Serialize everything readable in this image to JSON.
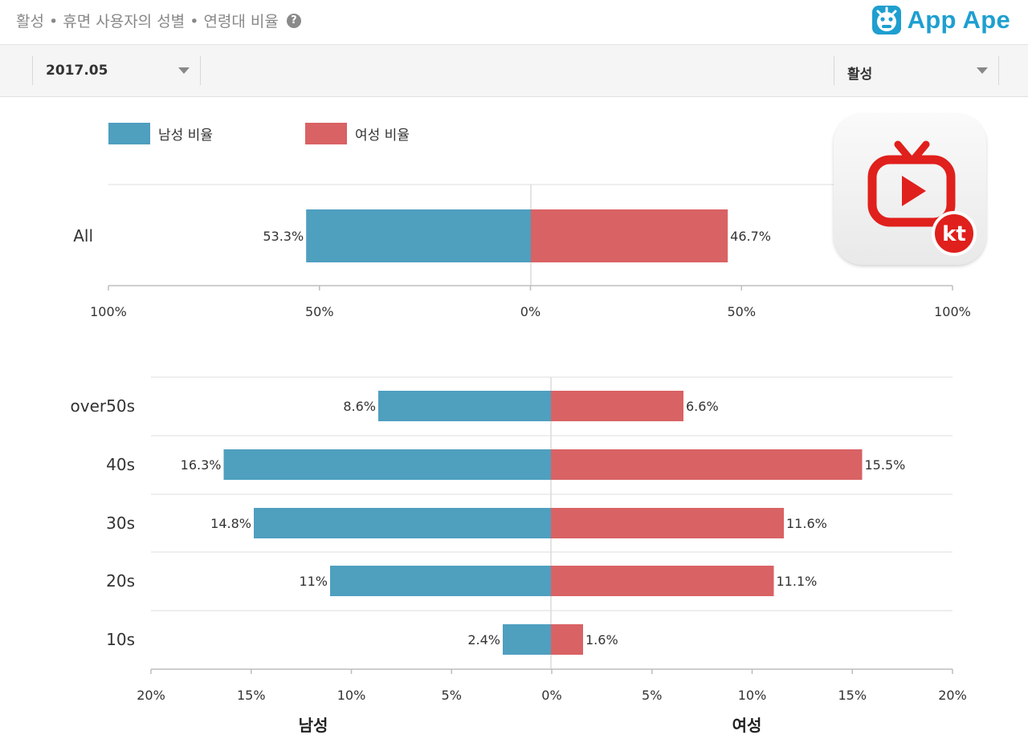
{
  "header": {
    "title": "활성 • 휴면 사용자의 성별 • 연령대 비율",
    "help_icon": "question-circle-icon",
    "brand_logo": "app-ape-logo-icon",
    "brand_name": "App Ape"
  },
  "toolbar": {
    "period_value": "2017.05",
    "status_value": "활성"
  },
  "colors": {
    "male": "#4f9fbf",
    "female": "#d96264",
    "brand": "#1e9fd0"
  },
  "app_icon": {
    "name": "kt-tv-app-icon",
    "badge": "kt"
  },
  "chart_data": [
    {
      "type": "bar",
      "orientation": "horizontal-diverging",
      "categories": [
        "All"
      ],
      "series": [
        {
          "name": "남성 비율",
          "values": [
            53.3
          ],
          "labels": [
            "53.3%"
          ]
        },
        {
          "name": "여성 비율",
          "values": [
            46.7
          ],
          "labels": [
            "46.7%"
          ]
        }
      ],
      "ticks": [
        "100%",
        "50%",
        "0%",
        "50%",
        "100%"
      ],
      "xlim": [
        -100,
        100
      ],
      "legend": "top-left",
      "grid": false
    },
    {
      "type": "bar",
      "orientation": "horizontal-diverging",
      "categories": [
        "over50s",
        "40s",
        "30s",
        "20s",
        "10s"
      ],
      "series": [
        {
          "name": "남성",
          "values": [
            8.6,
            16.3,
            14.8,
            11,
            2.4
          ],
          "labels": [
            "8.6%",
            "16.3%",
            "14.8%",
            "11%",
            "2.4%"
          ]
        },
        {
          "name": "여성",
          "values": [
            6.6,
            15.5,
            11.6,
            11.1,
            1.6
          ],
          "labels": [
            "6.6%",
            "15.5%",
            "11.6%",
            "11.1%",
            "1.6%"
          ]
        }
      ],
      "ticks": [
        "20%",
        "15%",
        "10%",
        "5%",
        "0%",
        "5%",
        "10%",
        "15%",
        "20%"
      ],
      "xlim": [
        -20,
        20
      ],
      "xlabel_left": "남성",
      "xlabel_right": "여성",
      "grid": true
    }
  ]
}
